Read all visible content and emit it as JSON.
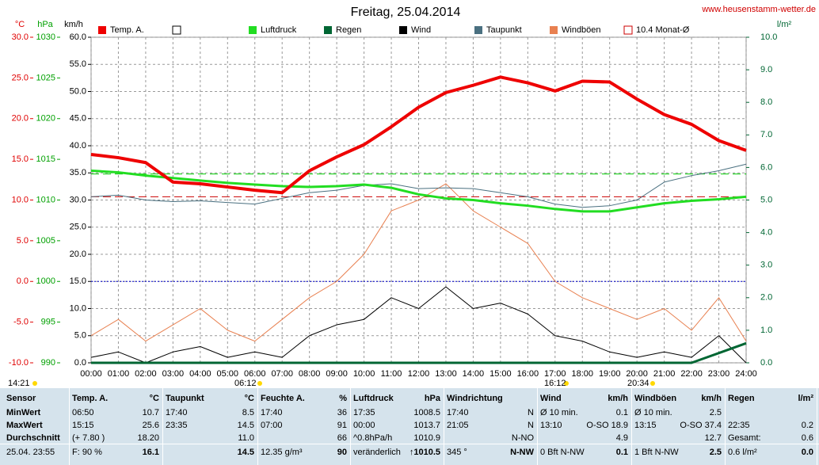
{
  "chart_data": {
    "type": "line",
    "title": "Freitag, 25.04.2014",
    "source": "www.heusenstamm-wetter.de",
    "xlim": [
      0,
      24
    ],
    "xticks": [
      {
        "value": 0,
        "label": "00:00"
      },
      {
        "value": 1,
        "label": "01:00"
      },
      {
        "value": 2,
        "label": "02:00"
      },
      {
        "value": 3,
        "label": "03:00"
      },
      {
        "value": 4,
        "label": "04:00"
      },
      {
        "value": 5,
        "label": "05:00"
      },
      {
        "value": 6,
        "label": "06:00"
      },
      {
        "value": 7,
        "label": "07:00"
      },
      {
        "value": 8,
        "label": "08:00"
      },
      {
        "value": 9,
        "label": "09:00"
      },
      {
        "value": 10,
        "label": "10:00"
      },
      {
        "value": 11,
        "label": "11:00"
      },
      {
        "value": 12,
        "label": "12:00"
      },
      {
        "value": 13,
        "label": "13:00"
      },
      {
        "value": 14,
        "label": "14:00"
      },
      {
        "value": 15,
        "label": "15:00"
      },
      {
        "value": 16,
        "label": "16:00"
      },
      {
        "value": 17,
        "label": "17:00"
      },
      {
        "value": 18,
        "label": "18:00"
      },
      {
        "value": 19,
        "label": "19:00"
      },
      {
        "value": 20,
        "label": "20:00"
      },
      {
        "value": 21,
        "label": "21:00"
      },
      {
        "value": 22,
        "label": "22:00"
      },
      {
        "value": 23,
        "label": "23:00"
      },
      {
        "value": 24,
        "label": "24:00"
      }
    ],
    "x": [
      0,
      1,
      2,
      3,
      4,
      5,
      6,
      7,
      8,
      9,
      10,
      11,
      12,
      13,
      14,
      15,
      16,
      17,
      18,
      19,
      20,
      21,
      22,
      23,
      24
    ],
    "y_axes": [
      {
        "label": "°C",
        "color": "#e00000",
        "side": "left",
        "lim": [
          -10,
          30
        ],
        "ticks": [
          {
            "value": -10,
            "label": "-10.0"
          },
          {
            "value": -5,
            "label": "-5.0"
          },
          {
            "value": 0,
            "label": "0.0"
          },
          {
            "value": 5,
            "label": "5.0"
          },
          {
            "value": 10,
            "label": "10.0"
          },
          {
            "value": 15,
            "label": "15.0"
          },
          {
            "value": 20,
            "label": "20.0"
          },
          {
            "value": 25,
            "label": "25.0"
          },
          {
            "value": 30,
            "label": "30.0"
          }
        ]
      },
      {
        "label": "hPa",
        "color": "#00a000",
        "side": "left",
        "lim": [
          990,
          1030
        ],
        "ticks": [
          990,
          995,
          1000,
          1005,
          1010,
          1015,
          1020,
          1025,
          1030
        ]
      },
      {
        "label": "km/h",
        "color": "#000000",
        "side": "left",
        "grid": true,
        "lim": [
          0,
          60
        ],
        "ticks": [
          {
            "value": 0,
            "label": "0.0"
          },
          {
            "value": 5,
            "label": "5.0"
          },
          {
            "value": 10,
            "label": "10.0"
          },
          {
            "value": 15,
            "label": "15.0"
          },
          {
            "value": 20,
            "label": "20.0"
          },
          {
            "value": 25,
            "label": "25.0"
          },
          {
            "value": 30,
            "label": "30.0"
          },
          {
            "value": 35,
            "label": "35.0"
          },
          {
            "value": 40,
            "label": "40.0"
          },
          {
            "value": 45,
            "label": "45.0"
          },
          {
            "value": 50,
            "label": "50.0"
          },
          {
            "value": 55,
            "label": "55.0"
          },
          {
            "value": 60,
            "label": "60.0"
          }
        ]
      },
      {
        "label": "l/m²",
        "color": "#006633",
        "side": "right",
        "lim": [
          0,
          10
        ],
        "ticks": [
          {
            "value": 0,
            "label": "0.0"
          },
          {
            "value": 1,
            "label": "1.0"
          },
          {
            "value": 2,
            "label": "2.0"
          },
          {
            "value": 3,
            "label": "3.0"
          },
          {
            "value": 4,
            "label": "4.0"
          },
          {
            "value": 5,
            "label": "5.0"
          },
          {
            "value": 6,
            "label": "6.0"
          },
          {
            "value": 7,
            "label": "7.0"
          },
          {
            "value": 8,
            "label": "8.0"
          },
          {
            "value": 9,
            "label": "9.0"
          },
          {
            "value": 10,
            "label": "10.0"
          }
        ]
      }
    ],
    "series": [
      {
        "name": "Temp. A.",
        "color": "#ee0000",
        "axis": "°C",
        "line_width": 4,
        "values": [
          15.6,
          15.2,
          14.6,
          12.2,
          12.0,
          11.6,
          11.2,
          10.9,
          13.6,
          15.3,
          16.8,
          19.0,
          21.4,
          23.2,
          24.1,
          25.1,
          24.4,
          23.4,
          24.6,
          24.5,
          22.4,
          20.5,
          19.3,
          17.3,
          16.1
        ]
      },
      {
        "name": "Luftdruck",
        "color": "#22dd22",
        "axis": "hPa",
        "line_width": 3,
        "values": [
          1013.6,
          1013.4,
          1013.0,
          1012.7,
          1012.4,
          1012.1,
          1011.9,
          1011.7,
          1011.6,
          1011.7,
          1011.9,
          1011.5,
          1010.7,
          1010.2,
          1010.0,
          1009.6,
          1009.3,
          1008.9,
          1008.6,
          1008.6,
          1009.1,
          1009.6,
          1009.9,
          1010.1,
          1010.4
        ]
      },
      {
        "name": "Regen",
        "color": "#006633",
        "axis": "l/m²",
        "line_width": 3,
        "values": [
          0,
          0,
          0,
          0,
          0,
          0,
          0,
          0,
          0,
          0,
          0,
          0,
          0,
          0,
          0,
          0,
          0,
          0,
          0,
          0,
          0,
          0,
          0,
          0.3,
          0.6
        ]
      },
      {
        "name": "Wind",
        "color": "#000000",
        "axis": "km/h",
        "line_width": 1,
        "values": [
          1,
          2,
          0,
          2,
          3,
          1,
          2,
          1,
          5,
          7,
          8,
          12,
          10,
          14,
          10,
          11,
          9,
          5,
          4,
          2,
          1,
          2,
          1,
          5,
          0
        ]
      },
      {
        "name": "Taupunkt",
        "color": "#4a7080",
        "axis": "°C",
        "line_width": 1,
        "values": [
          10.4,
          10.6,
          10.0,
          9.8,
          9.9,
          9.7,
          9.5,
          10.2,
          10.9,
          11.2,
          11.8,
          12.0,
          11.4,
          11.5,
          11.4,
          10.9,
          10.4,
          9.5,
          9.1,
          9.3,
          10.0,
          12.2,
          13.0,
          13.6,
          14.4
        ]
      },
      {
        "name": "Windböen",
        "color": "#e88050",
        "axis": "km/h",
        "line_width": 1,
        "values": [
          5,
          8,
          4,
          7,
          10,
          6,
          4,
          8,
          12,
          15,
          20,
          28,
          30,
          33,
          28,
          25,
          22,
          15,
          12,
          10,
          8,
          10,
          6,
          12,
          4
        ]
      }
    ],
    "reference_lines": [
      {
        "name": "10.4 Monat-Ø",
        "value": 10.4,
        "axis": "°C",
        "color": "#cc0000",
        "style": "dashed"
      },
      {
        "value": 1013.2,
        "axis": "hPa",
        "color": "#00cc00",
        "style": "dashed"
      },
      {
        "value": 0,
        "axis": "°C",
        "color": "#0000cc",
        "style": "dotted"
      }
    ],
    "annotations": [
      "14:21",
      "06:12",
      "16:12",
      "20:34"
    ]
  },
  "table": {
    "columns": [
      {
        "label": "Sensor"
      },
      {
        "label": "Temp. A.",
        "unit": "°C"
      },
      {
        "label": "Taupunkt",
        "unit": "°C"
      },
      {
        "label": "Feuchte A.",
        "unit": "%"
      },
      {
        "label": "Luftdruck",
        "unit": "hPa"
      },
      {
        "label": "Windrichtung"
      },
      {
        "label": "Wind",
        "unit": "km/h"
      },
      {
        "label": "Windböen",
        "unit": "km/h"
      },
      {
        "label": "Regen",
        "unit": "l/m²"
      }
    ],
    "rows": [
      {
        "label": "MinWert",
        "cells": [
          {
            "left": "06:50",
            "right": "10.7"
          },
          {
            "left": "17:40",
            "right": "8.5"
          },
          {
            "left": "17:40",
            "right": "36"
          },
          {
            "left": "17:35",
            "right": "1008.5"
          },
          {
            "left": "17:40",
            "right": "N"
          },
          {
            "left": "Ø 10 min.",
            "right": "0.1"
          },
          {
            "left": "Ø 10 min.",
            "right": "2.5"
          },
          {}
        ]
      },
      {
        "label": "MaxWert",
        "cells": [
          {
            "left": "15:15",
            "right": "25.6"
          },
          {
            "left": "23:35",
            "right": "14.5"
          },
          {
            "left": "07:00",
            "right": "91"
          },
          {
            "left": "00:00",
            "right": "1013.7"
          },
          {
            "left": "21:05",
            "right": "N"
          },
          {
            "left": "13:10",
            "right": "O-SO 18.9"
          },
          {
            "left": "13:15",
            "right": "O-SO 37.4"
          },
          {
            "left": "22:35",
            "right": "0.2"
          }
        ]
      },
      {
        "label": "Durchschnitt",
        "cells": [
          {
            "left": "(+ 7.80 )",
            "right": "18.20"
          },
          {
            "right": "11.0"
          },
          {
            "right": "66"
          },
          {
            "left": "^0.8hPa/h",
            "right": "1010.9"
          },
          {
            "right": "N-NO"
          },
          {
            "right": "4.9"
          },
          {
            "right": "12.7"
          },
          {
            "left": "Gesamt:",
            "right": "0.6"
          }
        ]
      },
      {
        "label": "25.04. 23:55",
        "cells": [
          {
            "left": "F: 90 %",
            "right": "16.1"
          },
          {
            "right": "14.5"
          },
          {
            "left": "12.35 g/m³",
            "right": "90"
          },
          {
            "left": "veränderlich",
            "right": "↑1010.5"
          },
          {
            "left": "345 °",
            "right": "N-NW"
          },
          {
            "left": "0 Bft N-NW",
            "right": "0.1"
          },
          {
            "left": "1 Bft N-NW",
            "right": "2.5"
          },
          {
            "left": "0.6 l/m²",
            "right": "0.0"
          }
        ]
      }
    ]
  }
}
